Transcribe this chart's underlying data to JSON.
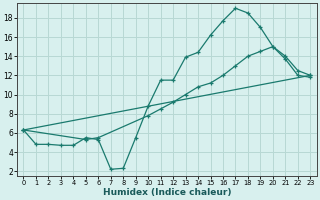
{
  "line1": {
    "x": [
      0,
      1,
      2,
      3,
      4,
      5,
      6,
      7,
      8,
      9,
      10,
      11,
      12,
      13,
      14,
      15,
      16,
      17,
      18,
      19,
      20,
      21,
      22,
      23
    ],
    "y": [
      6.3,
      4.8,
      4.8,
      4.7,
      4.7,
      5.5,
      5.3,
      2.2,
      2.3,
      5.5,
      8.8,
      11.5,
      11.5,
      13.9,
      14.4,
      16.2,
      17.7,
      19.0,
      18.5,
      17.0,
      15.0,
      13.7,
      12.0,
      11.8
    ],
    "color": "#1a7a6e",
    "marker": "+"
  },
  "line2": {
    "x": [
      0,
      5,
      6,
      10,
      11,
      12,
      13,
      14,
      15,
      16,
      17,
      18,
      19,
      20,
      21,
      22,
      23
    ],
    "y": [
      6.3,
      5.3,
      5.5,
      7.8,
      8.5,
      9.2,
      10.0,
      10.8,
      11.2,
      12.0,
      13.0,
      14.0,
      14.5,
      15.0,
      14.0,
      12.5,
      12.0
    ],
    "color": "#1a7a6e",
    "marker": "+"
  },
  "line3": {
    "x": [
      0,
      23
    ],
    "y": [
      6.3,
      12.0
    ],
    "color": "#1a7a6e",
    "marker": "+"
  },
  "background_color": "#d8f0ee",
  "grid_color": "#b8d8d4",
  "axis_color": "#444444",
  "xlabel": "Humidex (Indice chaleur)",
  "xlim": [
    -0.5,
    23.5
  ],
  "ylim": [
    1.5,
    19.5
  ],
  "yticks": [
    2,
    4,
    6,
    8,
    10,
    12,
    14,
    16,
    18
  ],
  "xticks": [
    0,
    1,
    2,
    3,
    4,
    5,
    6,
    7,
    8,
    9,
    10,
    11,
    12,
    13,
    14,
    15,
    16,
    17,
    18,
    19,
    20,
    21,
    22,
    23
  ]
}
